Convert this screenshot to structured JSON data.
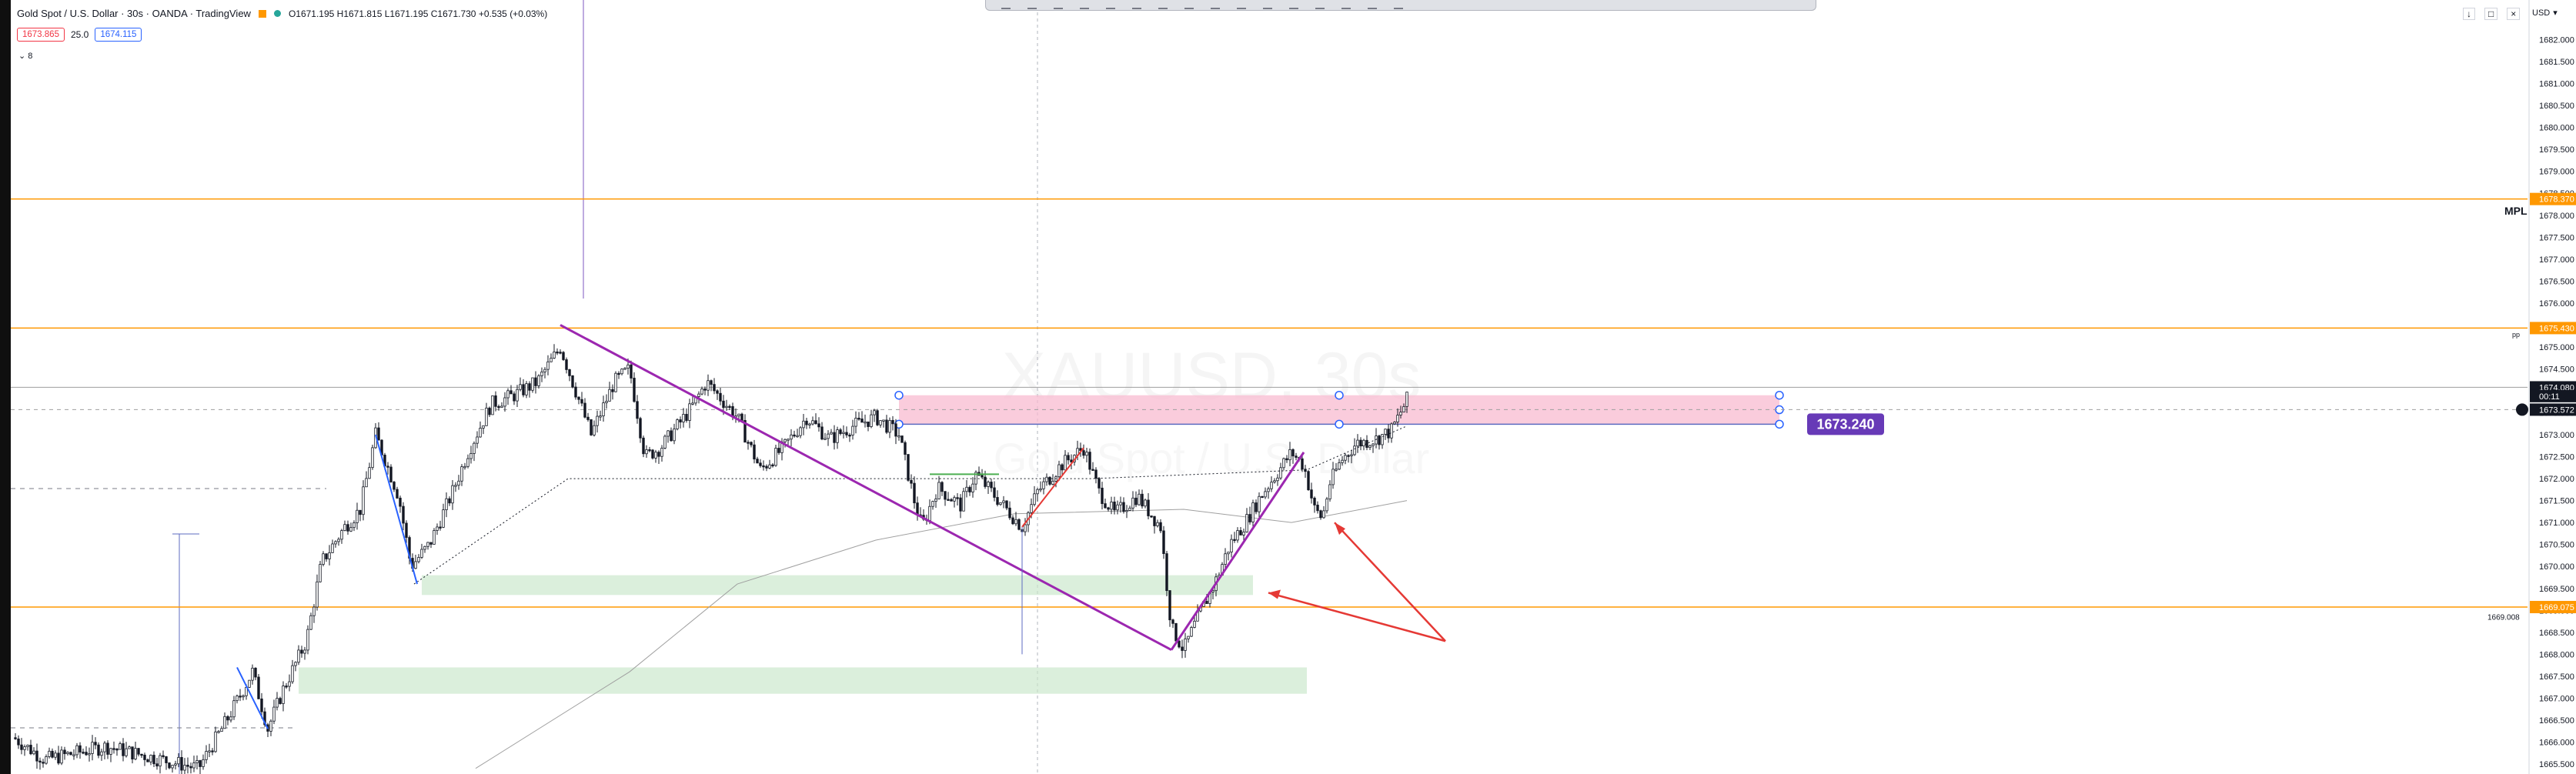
{
  "header": {
    "symbol": "Gold Spot / U.S. Dollar · 30s · OANDA · TradingView",
    "ohlc": "O1671.195 H1671.815 L1671.195 C1671.730 +0.535 (+0.03%)",
    "sell_price": "1673.865",
    "spread": "25.0",
    "buy_price": "1674.115",
    "indicators_count": "8",
    "currency": "USD"
  },
  "watermark": {
    "line1": "XAUUSD, 30s",
    "line2": "Gold Spot / U.S. Dollar"
  },
  "colors": {
    "up": "#131722",
    "down": "#131722",
    "purple": "#9c27b0",
    "orange": "#ff9800",
    "zone_pink": "#f8bbd0",
    "zone_green": "#c8e6c9",
    "arrow": "#e53935",
    "label_bg": "#673ab7"
  },
  "chart_data": {
    "type": "candlestick",
    "symbol": "XAUUSD",
    "timeframe": "30s",
    "ylim": [
      1665.5,
      1682.5
    ],
    "y_ticks": [
      "1665.500",
      "1666.000",
      "1666.500",
      "1667.000",
      "1667.500",
      "1668.000",
      "1668.500",
      "1669.000",
      "1669.500",
      "1670.000",
      "1670.500",
      "1671.000",
      "1671.500",
      "1672.000",
      "1672.500",
      "1673.000",
      "1673.500",
      "1674.000",
      "1674.500",
      "1675.000",
      "1675.500",
      "1676.000",
      "1676.500",
      "1677.000",
      "1677.500",
      "1678.000",
      "1678.500",
      "1679.000",
      "1679.500",
      "1680.000",
      "1680.500",
      "1681.000",
      "1681.500",
      "1682.000"
    ],
    "price_path": [
      [
        0,
        1666.1
      ],
      [
        20,
        1665.6
      ],
      [
        60,
        1665.9
      ],
      [
        120,
        1665.4
      ],
      [
        140,
        1666.6
      ],
      [
        155,
        1667.6
      ],
      [
        165,
        1666.3
      ],
      [
        175,
        1667.2
      ],
      [
        190,
        1668.3
      ],
      [
        200,
        1670.1
      ],
      [
        215,
        1670.9
      ],
      [
        225,
        1671.3
      ],
      [
        235,
        1673.0
      ],
      [
        250,
        1671.6
      ],
      [
        258,
        1670.0
      ],
      [
        270,
        1670.5
      ],
      [
        285,
        1671.7
      ],
      [
        295,
        1672.6
      ],
      [
        310,
        1673.7
      ],
      [
        325,
        1673.9
      ],
      [
        340,
        1674.2
      ],
      [
        355,
        1675.0
      ],
      [
        365,
        1674.0
      ],
      [
        375,
        1673.0
      ],
      [
        390,
        1674.2
      ],
      [
        400,
        1674.5
      ],
      [
        410,
        1672.5
      ],
      [
        420,
        1672.7
      ],
      [
        440,
        1673.6
      ],
      [
        450,
        1674.2
      ],
      [
        460,
        1673.8
      ],
      [
        470,
        1673.4
      ],
      [
        485,
        1672.2
      ],
      [
        500,
        1672.7
      ],
      [
        515,
        1673.4
      ],
      [
        530,
        1672.9
      ],
      [
        545,
        1673.2
      ],
      [
        560,
        1673.4
      ],
      [
        575,
        1673.0
      ],
      [
        585,
        1671.5
      ],
      [
        590,
        1670.9
      ],
      [
        600,
        1671.8
      ],
      [
        615,
        1671.4
      ],
      [
        625,
        1672.1
      ],
      [
        640,
        1671.5
      ],
      [
        655,
        1670.9
      ],
      [
        665,
        1671.7
      ],
      [
        680,
        1672.3
      ],
      [
        695,
        1672.7
      ],
      [
        705,
        1671.7
      ],
      [
        715,
        1671.2
      ],
      [
        730,
        1671.6
      ],
      [
        745,
        1670.9
      ],
      [
        752,
        1668.6
      ],
      [
        760,
        1668.1
      ],
      [
        770,
        1668.9
      ],
      [
        780,
        1669.6
      ],
      [
        790,
        1670.5
      ],
      [
        800,
        1671.0
      ],
      [
        810,
        1671.6
      ],
      [
        820,
        1672.1
      ],
      [
        830,
        1672.6
      ],
      [
        838,
        1672.3
      ],
      [
        845,
        1671.3
      ],
      [
        850,
        1671.1
      ],
      [
        855,
        1671.9
      ],
      [
        862,
        1672.4
      ],
      [
        872,
        1672.8
      ],
      [
        885,
        1672.9
      ],
      [
        895,
        1673.1
      ],
      [
        905,
        1673.8
      ]
    ],
    "horizontal_levels": [
      {
        "label": "MPL",
        "price": 1678.37,
        "color": "#ff9800"
      },
      {
        "label": "",
        "price": 1675.43,
        "color": "#ff9800"
      },
      {
        "label": "",
        "price": 1669.075,
        "color": "#ff9800"
      },
      {
        "label": "",
        "price": 1674.08,
        "color": "#9e9e9e"
      }
    ],
    "price_labels": [
      {
        "text": "1678.370",
        "price": 1678.37,
        "bg": "#ff9800"
      },
      {
        "text": "1675.430",
        "price": 1675.43,
        "bg": "#ff9800"
      },
      {
        "text": "1669.075",
        "price": 1669.075,
        "bg": "#ff9800"
      },
      {
        "text": "1674.080",
        "price": 1674.08,
        "bg": "#131722"
      },
      {
        "text": "00:11",
        "price": 1673.88,
        "bg": "#131722"
      },
      {
        "text": "1673.572",
        "price": 1673.572,
        "bg": "#131722"
      }
    ],
    "side_text": {
      "mpl": "MPL",
      "pp": "pp",
      "level": "1669.008"
    },
    "zones": [
      {
        "kind": "supply",
        "top": 1673.9,
        "bottom": 1673.24,
        "x0": 575,
        "x1": 1147
      },
      {
        "kind": "demand",
        "top": 1669.8,
        "bottom": 1669.35,
        "x0": 265,
        "x1": 805
      },
      {
        "kind": "demand",
        "top": 1667.7,
        "bottom": 1667.1,
        "x0": 185,
        "x1": 840
      }
    ],
    "zone_label": "1673.240",
    "trend_lines": [
      {
        "from": [
          355,
          1675.5
        ],
        "to": [
          752,
          1668.1
        ],
        "color": "#9c27b0"
      },
      {
        "from": [
          752,
          1668.1
        ],
        "to": [
          838,
          1672.6
        ],
        "color": "#9c27b0"
      },
      {
        "from": [
          655,
          1670.9
        ],
        "to": [
          695,
          1672.7
        ],
        "color": "#e53935"
      },
      {
        "from": [
          235,
          1673.0
        ],
        "to": [
          262,
          1669.6
        ],
        "color": "#2962ff"
      },
      {
        "from": [
          145,
          1667.7
        ],
        "to": [
          165,
          1666.3
        ],
        "color": "#2962ff"
      }
    ],
    "moving_average": [
      [
        300,
        1665.4
      ],
      [
        400,
        1667.6
      ],
      [
        470,
        1669.6
      ],
      [
        560,
        1670.6
      ],
      [
        650,
        1671.2
      ],
      [
        760,
        1671.3
      ],
      [
        830,
        1671.0
      ],
      [
        905,
        1671.5
      ]
    ],
    "arrow": {
      "from": [
        930,
        1668.3
      ],
      "to_a": [
        815,
        1669.4
      ],
      "to_b": [
        858,
        1671.0
      ]
    }
  }
}
